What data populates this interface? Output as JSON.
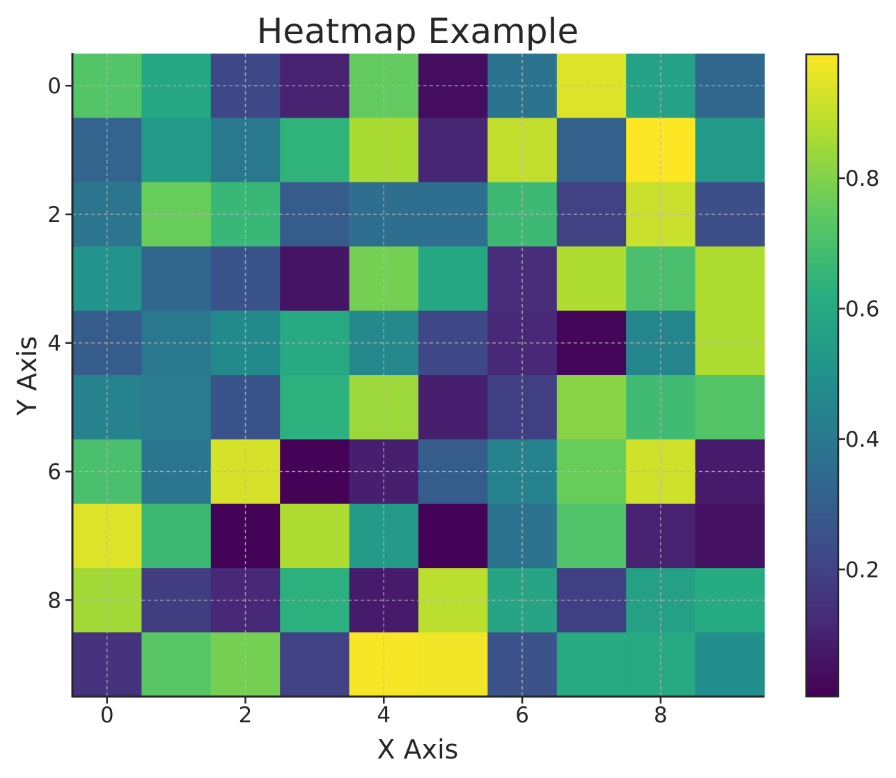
{
  "chart_data": {
    "type": "heatmap",
    "title": "Heatmap Example",
    "xlabel": "X Axis",
    "ylabel": "Y Axis",
    "x_ticks": [
      "0",
      "2",
      "4",
      "6",
      "8"
    ],
    "y_ticks": [
      "0",
      "2",
      "4",
      "6",
      "8"
    ],
    "colorbar_ticks": [
      "0.2",
      "0.4",
      "0.6",
      "0.8"
    ],
    "colormap": "viridis",
    "vmin": 0.005,
    "vmax": 0.99,
    "grid": true,
    "rows": 10,
    "cols": 10,
    "values": [
      [
        0.72,
        0.59,
        0.22,
        0.1,
        0.75,
        0.04,
        0.38,
        0.94,
        0.57,
        0.33
      ],
      [
        0.32,
        0.54,
        0.4,
        0.64,
        0.86,
        0.11,
        0.9,
        0.31,
        0.99,
        0.53
      ],
      [
        0.39,
        0.76,
        0.66,
        0.29,
        0.36,
        0.36,
        0.67,
        0.2,
        0.91,
        0.24
      ],
      [
        0.51,
        0.33,
        0.26,
        0.06,
        0.78,
        0.59,
        0.13,
        0.87,
        0.7,
        0.87
      ],
      [
        0.29,
        0.4,
        0.47,
        0.6,
        0.46,
        0.22,
        0.12,
        0.02,
        0.45,
        0.87
      ],
      [
        0.44,
        0.41,
        0.26,
        0.63,
        0.84,
        0.09,
        0.19,
        0.81,
        0.68,
        0.72
      ],
      [
        0.7,
        0.39,
        0.93,
        0.01,
        0.09,
        0.29,
        0.44,
        0.76,
        0.92,
        0.08
      ],
      [
        0.94,
        0.67,
        0.01,
        0.87,
        0.54,
        0.01,
        0.38,
        0.71,
        0.1,
        0.05
      ],
      [
        0.85,
        0.18,
        0.12,
        0.63,
        0.08,
        0.89,
        0.58,
        0.19,
        0.56,
        0.61
      ],
      [
        0.15,
        0.73,
        0.78,
        0.2,
        0.98,
        0.97,
        0.25,
        0.6,
        0.6,
        0.49
      ]
    ]
  }
}
